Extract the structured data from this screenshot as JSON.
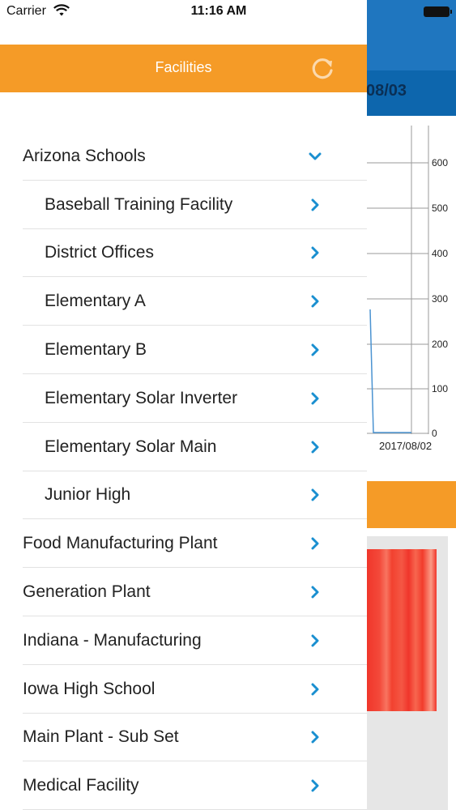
{
  "status_bar": {
    "carrier": "Carrier",
    "time": "11:16 AM"
  },
  "background": {
    "date_partial": "08/03",
    "chart": {
      "y_ticks": [
        "600",
        "500",
        "400",
        "300",
        "200",
        "100",
        "0"
      ],
      "x_tick": "2017/08/02"
    },
    "colors": {
      "header_blue": "#1f76bf",
      "orange": "#f59b27",
      "heat_red": "#f0362b"
    }
  },
  "drawer": {
    "title": "Facilities",
    "refresh_icon": "refresh-icon",
    "accent_color": "#1a8fd0",
    "header_color": "#f59b27",
    "items": [
      {
        "label": "Arizona Schools",
        "level": 0,
        "icon": "chevron-down-icon"
      },
      {
        "label": "Baseball Training Facility",
        "level": 1,
        "icon": "chevron-right-icon"
      },
      {
        "label": "District Offices",
        "level": 1,
        "icon": "chevron-right-icon"
      },
      {
        "label": "Elementary A",
        "level": 1,
        "icon": "chevron-right-icon"
      },
      {
        "label": "Elementary B",
        "level": 1,
        "icon": "chevron-right-icon"
      },
      {
        "label": "Elementary Solar Inverter",
        "level": 1,
        "icon": "chevron-right-icon"
      },
      {
        "label": "Elementary Solar Main",
        "level": 1,
        "icon": "chevron-right-icon"
      },
      {
        "label": "Junior High",
        "level": 1,
        "icon": "chevron-right-icon"
      },
      {
        "label": "Food Manufacturing Plant",
        "level": 0,
        "icon": "chevron-right-icon"
      },
      {
        "label": "Generation Plant",
        "level": 0,
        "icon": "chevron-right-icon"
      },
      {
        "label": "Indiana - Manufacturing",
        "level": 0,
        "icon": "chevron-right-icon"
      },
      {
        "label": "Iowa High School",
        "level": 0,
        "icon": "chevron-right-icon"
      },
      {
        "label": "Main Plant - Sub Set",
        "level": 0,
        "icon": "chevron-right-icon"
      },
      {
        "label": "Medical Facility",
        "level": 0,
        "icon": "chevron-right-icon"
      }
    ]
  }
}
